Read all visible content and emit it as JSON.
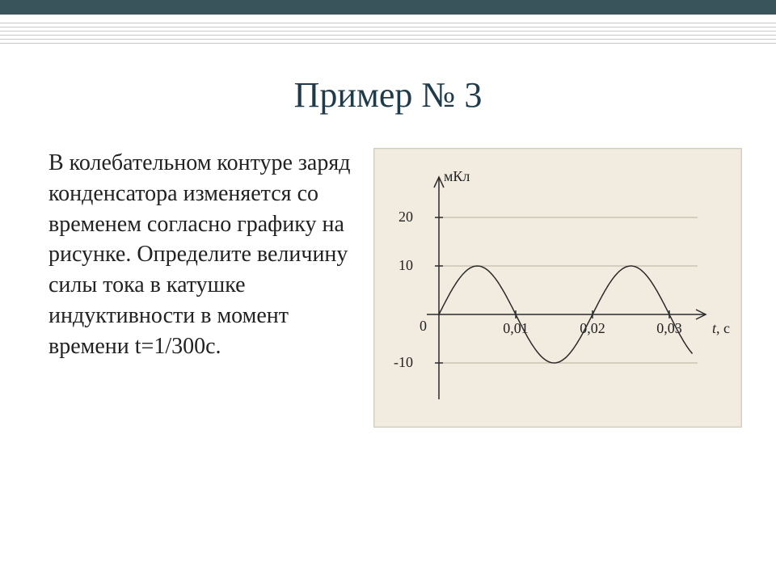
{
  "header": {
    "top_bar_color": "#3a545c",
    "rule_line_color": "#c9c9c9",
    "rule_line_count": 6
  },
  "title": "Пример № 3",
  "prompt_text": " В колебательном контуре заряд конденсатора изменяется со временем согласно графику на рисунке. Определите величину силы тока в катушке индуктивности в момент времени t=1/300с.",
  "chart": {
    "type": "line",
    "paper_bg": "#f2ece0",
    "axis_color": "#2a2a2a",
    "grid_color": "#b7b09c",
    "curve_color": "#2a2a2a",
    "y_label": "мКл",
    "x_label_var": "t",
    "x_label_unit": ", с",
    "y_ticks": [
      -10,
      0,
      10,
      20
    ],
    "x_ticks": [
      0.01,
      0.02,
      0.03
    ],
    "xlim": [
      0,
      0.033
    ],
    "ylim": [
      -13,
      23
    ],
    "amplitude_mkC": 10,
    "period_s": 0.02,
    "y_tick_labels": {
      "neg10": "-10",
      "zero": "0",
      "p10": "10",
      "p20": "20"
    },
    "x_tick_labels": {
      "t1": "0,01",
      "t2": "0,02",
      "t3": "0,03"
    },
    "title_fontsize": 18,
    "label_fontsize": 18
  }
}
